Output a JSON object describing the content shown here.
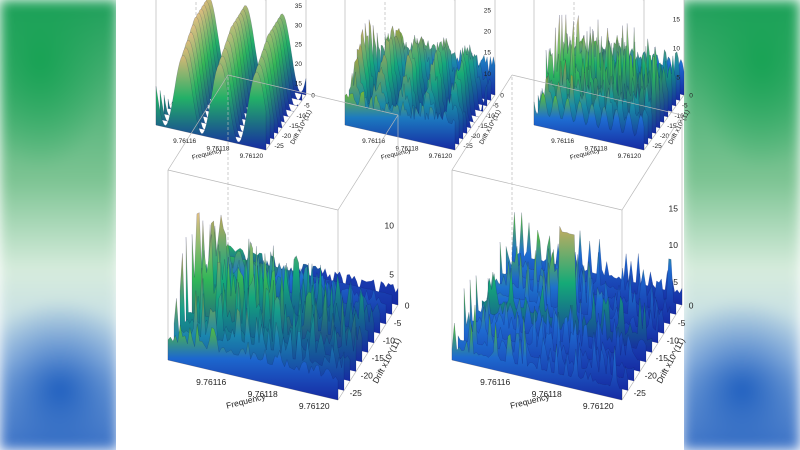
{
  "chart_data": [
    {
      "type": "surface",
      "xlabel": "Frequency",
      "ylabel": "Drift x10^(11)",
      "x_ticks": [
        "9.76116",
        "9.76118",
        "9.76120"
      ],
      "y_ticks": [
        "0",
        "-5",
        "-10",
        "-15",
        "-20",
        "-25"
      ],
      "z_ticks": [
        "35",
        "30",
        "25",
        "20",
        "15"
      ],
      "zlim": [
        12,
        36
      ],
      "peaks": [
        {
          "x": 9.761157,
          "y": -12,
          "z": 34
        },
        {
          "x": 9.761178,
          "y": -12,
          "z": 34
        },
        {
          "x": 9.761199,
          "y": -12,
          "z": 32
        }
      ]
    },
    {
      "type": "surface",
      "xlabel": "Frequency",
      "ylabel": "Drift x10^(11)",
      "x_ticks": [
        "9.76116",
        "9.76118",
        "9.76120"
      ],
      "y_ticks": [
        "0",
        "-5",
        "-10",
        "-15",
        "-20",
        "-25"
      ],
      "z_ticks": [
        "25",
        "20",
        "15",
        "10"
      ],
      "zlim": [
        5,
        27
      ],
      "peaks": [
        {
          "x": 9.761165,
          "y": -10,
          "z": 20
        },
        {
          "x": 9.761182,
          "y": -12,
          "z": 26
        },
        {
          "x": 9.761196,
          "y": -10,
          "z": 22
        }
      ]
    },
    {
      "type": "surface",
      "xlabel": "Frequency",
      "ylabel": "Drift x10^(11)",
      "x_ticks": [
        "9.76116",
        "9.76118",
        "9.76120"
      ],
      "y_ticks": [
        "0",
        "-5",
        "-10",
        "-15",
        "-20",
        "-25"
      ],
      "z_ticks": [
        "15",
        "10",
        "5"
      ],
      "zlim": [
        2,
        18
      ],
      "peaks": [
        {
          "x": 9.76117,
          "y": -12,
          "z": 16
        },
        {
          "x": 9.761182,
          "y": -10,
          "z": 17
        },
        {
          "x": 9.761192,
          "y": -14,
          "z": 15
        }
      ]
    },
    {
      "type": "surface",
      "xlabel": "Frequency",
      "ylabel": "Drift x10^(11)",
      "x_ticks": [
        "9.76116",
        "9.76118",
        "9.76120"
      ],
      "y_ticks": [
        "0",
        "-5",
        "-10",
        "-15",
        "-20",
        "-25"
      ],
      "z_ticks": [
        "10",
        "5"
      ],
      "zlim": [
        2,
        14
      ],
      "peaks": [
        {
          "x": 9.761185,
          "y": -10,
          "z": 12
        },
        {
          "x": 9.761195,
          "y": -12,
          "z": 11
        },
        {
          "x": 9.76117,
          "y": -14,
          "z": 9
        }
      ]
    },
    {
      "type": "surface",
      "xlabel": "Frequency",
      "ylabel": "Drift x10^(11)",
      "x_ticks": [
        "9.76116",
        "9.76118",
        "9.76120"
      ],
      "y_ticks": [
        "0",
        "-5",
        "-10",
        "-15",
        "-20",
        "-25"
      ],
      "z_ticks": [
        "15",
        "10",
        "5"
      ],
      "zlim": [
        2,
        18
      ],
      "peaks": [
        {
          "x": 9.761185,
          "y": -12,
          "z": 17
        },
        {
          "x": 9.761178,
          "y": -10,
          "z": 11
        },
        {
          "x": 9.761195,
          "y": -14,
          "z": 10
        }
      ]
    }
  ]
}
